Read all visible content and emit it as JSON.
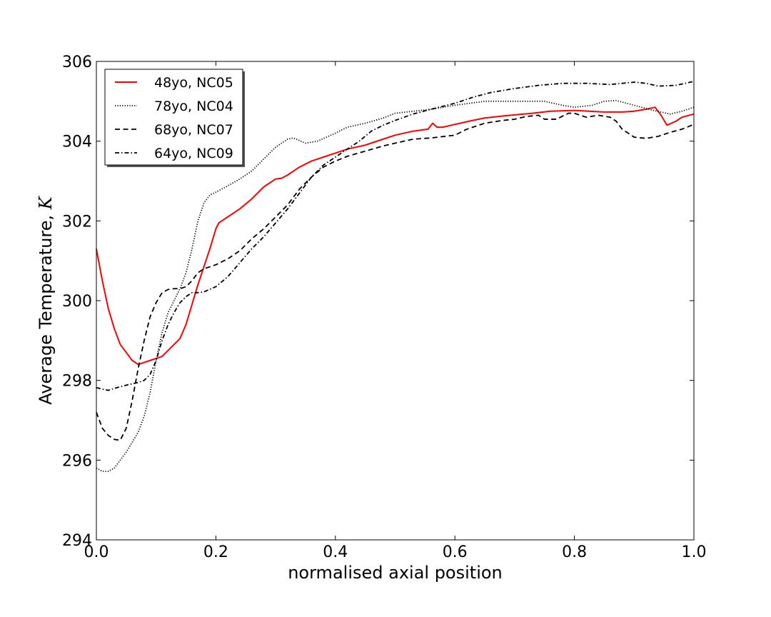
{
  "chart_data": {
    "type": "line",
    "title": "",
    "xlabel": "normalised axial position",
    "ylabel_prefix": "Average Temperature, ",
    "ylabel_unit": "K",
    "xlim": [
      0.0,
      1.0
    ],
    "ylim": [
      294,
      306
    ],
    "x_ticks": [
      0.0,
      0.2,
      0.4,
      0.6,
      0.8,
      1.0
    ],
    "x_tick_labels": [
      "0.0",
      "0.2",
      "0.4",
      "0.6",
      "0.8",
      "1.0"
    ],
    "y_ticks": [
      294,
      296,
      298,
      300,
      302,
      304,
      306
    ],
    "y_tick_labels": [
      "294",
      "296",
      "298",
      "300",
      "302",
      "304",
      "306"
    ],
    "grid": false,
    "legend_position": "top-left",
    "series": [
      {
        "name": "48yo, NC05",
        "color": "#ff0000",
        "style": "solid",
        "points": [
          [
            0.0,
            301.3
          ],
          [
            0.01,
            300.5
          ],
          [
            0.02,
            299.8
          ],
          [
            0.03,
            299.3
          ],
          [
            0.04,
            298.9
          ],
          [
            0.05,
            298.7
          ],
          [
            0.06,
            298.5
          ],
          [
            0.07,
            298.4
          ],
          [
            0.08,
            298.45
          ],
          [
            0.09,
            298.5
          ],
          [
            0.1,
            298.55
          ],
          [
            0.11,
            298.6
          ],
          [
            0.12,
            298.75
          ],
          [
            0.13,
            298.9
          ],
          [
            0.14,
            299.05
          ],
          [
            0.15,
            299.4
          ],
          [
            0.16,
            299.9
          ],
          [
            0.17,
            300.4
          ],
          [
            0.18,
            300.85
          ],
          [
            0.19,
            301.3
          ],
          [
            0.2,
            301.8
          ],
          [
            0.205,
            301.95
          ],
          [
            0.21,
            302.0
          ],
          [
            0.22,
            302.1
          ],
          [
            0.24,
            302.3
          ],
          [
            0.26,
            302.55
          ],
          [
            0.28,
            302.85
          ],
          [
            0.3,
            303.05
          ],
          [
            0.31,
            303.07
          ],
          [
            0.32,
            303.15
          ],
          [
            0.34,
            303.35
          ],
          [
            0.36,
            303.5
          ],
          [
            0.38,
            303.6
          ],
          [
            0.4,
            303.7
          ],
          [
            0.42,
            303.8
          ],
          [
            0.45,
            303.9
          ],
          [
            0.48,
            304.05
          ],
          [
            0.5,
            304.15
          ],
          [
            0.53,
            304.25
          ],
          [
            0.555,
            304.3
          ],
          [
            0.563,
            304.45
          ],
          [
            0.57,
            304.35
          ],
          [
            0.58,
            304.35
          ],
          [
            0.6,
            304.42
          ],
          [
            0.63,
            304.52
          ],
          [
            0.65,
            304.58
          ],
          [
            0.68,
            304.63
          ],
          [
            0.7,
            304.66
          ],
          [
            0.73,
            304.7
          ],
          [
            0.76,
            304.75
          ],
          [
            0.8,
            304.77
          ],
          [
            0.85,
            304.73
          ],
          [
            0.88,
            304.73
          ],
          [
            0.9,
            304.75
          ],
          [
            0.92,
            304.8
          ],
          [
            0.935,
            304.85
          ],
          [
            0.945,
            304.65
          ],
          [
            0.955,
            304.4
          ],
          [
            0.97,
            304.5
          ],
          [
            0.98,
            304.6
          ],
          [
            1.0,
            304.68
          ]
        ]
      },
      {
        "name": "78yo, NC04",
        "color": "#000000",
        "style": "dotted",
        "points": [
          [
            0.0,
            295.8
          ],
          [
            0.01,
            295.72
          ],
          [
            0.02,
            295.72
          ],
          [
            0.03,
            295.8
          ],
          [
            0.04,
            296.0
          ],
          [
            0.05,
            296.2
          ],
          [
            0.06,
            296.45
          ],
          [
            0.07,
            296.7
          ],
          [
            0.08,
            297.1
          ],
          [
            0.09,
            297.7
          ],
          [
            0.1,
            298.5
          ],
          [
            0.11,
            299.2
          ],
          [
            0.12,
            299.7
          ],
          [
            0.13,
            300.0
          ],
          [
            0.14,
            300.3
          ],
          [
            0.15,
            300.7
          ],
          [
            0.16,
            301.3
          ],
          [
            0.17,
            302.0
          ],
          [
            0.18,
            302.45
          ],
          [
            0.19,
            302.65
          ],
          [
            0.2,
            302.72
          ],
          [
            0.22,
            302.88
          ],
          [
            0.24,
            303.05
          ],
          [
            0.26,
            303.25
          ],
          [
            0.28,
            303.55
          ],
          [
            0.3,
            303.85
          ],
          [
            0.32,
            304.05
          ],
          [
            0.33,
            304.08
          ],
          [
            0.35,
            303.95
          ],
          [
            0.37,
            304.0
          ],
          [
            0.4,
            304.2
          ],
          [
            0.42,
            304.35
          ],
          [
            0.45,
            304.45
          ],
          [
            0.48,
            304.58
          ],
          [
            0.5,
            304.7
          ],
          [
            0.53,
            304.75
          ],
          [
            0.56,
            304.8
          ],
          [
            0.6,
            304.9
          ],
          [
            0.65,
            305.0
          ],
          [
            0.7,
            305.0
          ],
          [
            0.75,
            305.0
          ],
          [
            0.78,
            304.9
          ],
          [
            0.8,
            304.85
          ],
          [
            0.83,
            304.9
          ],
          [
            0.85,
            305.0
          ],
          [
            0.87,
            305.02
          ],
          [
            0.9,
            304.9
          ],
          [
            0.93,
            304.78
          ],
          [
            0.96,
            304.68
          ],
          [
            0.98,
            304.75
          ],
          [
            1.0,
            304.85
          ]
        ]
      },
      {
        "name": "68yo, NC07",
        "color": "#000000",
        "style": "dashed",
        "points": [
          [
            0.0,
            297.2
          ],
          [
            0.01,
            296.8
          ],
          [
            0.02,
            296.62
          ],
          [
            0.03,
            296.52
          ],
          [
            0.04,
            296.5
          ],
          [
            0.05,
            296.8
          ],
          [
            0.06,
            297.5
          ],
          [
            0.07,
            298.3
          ],
          [
            0.08,
            299.0
          ],
          [
            0.09,
            299.6
          ],
          [
            0.1,
            299.95
          ],
          [
            0.11,
            300.2
          ],
          [
            0.12,
            300.28
          ],
          [
            0.13,
            300.3
          ],
          [
            0.14,
            300.3
          ],
          [
            0.15,
            300.35
          ],
          [
            0.16,
            300.5
          ],
          [
            0.17,
            300.7
          ],
          [
            0.18,
            300.8
          ],
          [
            0.2,
            300.9
          ],
          [
            0.22,
            301.05
          ],
          [
            0.24,
            301.25
          ],
          [
            0.26,
            301.55
          ],
          [
            0.28,
            301.8
          ],
          [
            0.3,
            302.1
          ],
          [
            0.32,
            302.4
          ],
          [
            0.34,
            302.8
          ],
          [
            0.36,
            303.1
          ],
          [
            0.38,
            303.35
          ],
          [
            0.4,
            303.5
          ],
          [
            0.42,
            303.62
          ],
          [
            0.45,
            303.75
          ],
          [
            0.48,
            303.88
          ],
          [
            0.5,
            303.95
          ],
          [
            0.53,
            304.05
          ],
          [
            0.56,
            304.08
          ],
          [
            0.6,
            304.15
          ],
          [
            0.62,
            304.3
          ],
          [
            0.65,
            304.45
          ],
          [
            0.68,
            304.52
          ],
          [
            0.7,
            304.55
          ],
          [
            0.72,
            304.62
          ],
          [
            0.74,
            304.65
          ],
          [
            0.75,
            304.55
          ],
          [
            0.77,
            304.55
          ],
          [
            0.79,
            304.7
          ],
          [
            0.8,
            304.7
          ],
          [
            0.82,
            304.6
          ],
          [
            0.84,
            304.65
          ],
          [
            0.86,
            304.6
          ],
          [
            0.87,
            304.5
          ],
          [
            0.88,
            304.3
          ],
          [
            0.9,
            304.1
          ],
          [
            0.92,
            304.07
          ],
          [
            0.94,
            304.12
          ],
          [
            0.96,
            304.22
          ],
          [
            0.98,
            304.3
          ],
          [
            1.0,
            304.42
          ]
        ]
      },
      {
        "name": "64yo, NC09",
        "color": "#000000",
        "style": "dashdot",
        "points": [
          [
            0.0,
            297.82
          ],
          [
            0.01,
            297.78
          ],
          [
            0.02,
            297.75
          ],
          [
            0.03,
            297.8
          ],
          [
            0.05,
            297.88
          ],
          [
            0.07,
            297.95
          ],
          [
            0.08,
            298.0
          ],
          [
            0.09,
            298.15
          ],
          [
            0.1,
            298.5
          ],
          [
            0.11,
            299.0
          ],
          [
            0.12,
            299.4
          ],
          [
            0.13,
            299.7
          ],
          [
            0.14,
            299.95
          ],
          [
            0.15,
            300.1
          ],
          [
            0.16,
            300.2
          ],
          [
            0.17,
            300.2
          ],
          [
            0.18,
            300.22
          ],
          [
            0.2,
            300.35
          ],
          [
            0.22,
            300.6
          ],
          [
            0.24,
            300.95
          ],
          [
            0.26,
            301.3
          ],
          [
            0.28,
            301.6
          ],
          [
            0.3,
            301.95
          ],
          [
            0.32,
            302.3
          ],
          [
            0.34,
            302.7
          ],
          [
            0.36,
            303.1
          ],
          [
            0.38,
            303.4
          ],
          [
            0.4,
            303.6
          ],
          [
            0.42,
            303.8
          ],
          [
            0.44,
            304.0
          ],
          [
            0.46,
            304.25
          ],
          [
            0.48,
            304.4
          ],
          [
            0.5,
            304.52
          ],
          [
            0.53,
            304.68
          ],
          [
            0.56,
            304.8
          ],
          [
            0.6,
            304.95
          ],
          [
            0.63,
            305.1
          ],
          [
            0.66,
            305.22
          ],
          [
            0.7,
            305.32
          ],
          [
            0.74,
            305.4
          ],
          [
            0.78,
            305.45
          ],
          [
            0.82,
            305.45
          ],
          [
            0.86,
            305.42
          ],
          [
            0.9,
            305.48
          ],
          [
            0.92,
            305.45
          ],
          [
            0.94,
            305.38
          ],
          [
            0.97,
            305.4
          ],
          [
            1.0,
            305.5
          ]
        ]
      }
    ]
  }
}
